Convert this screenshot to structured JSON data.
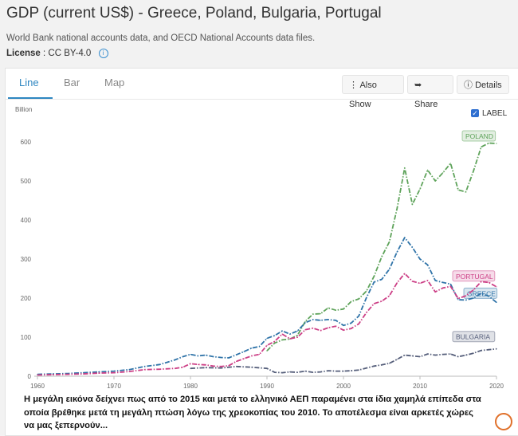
{
  "page": {
    "title": "GDP (current US$) - Greece, Poland, Bulgaria, Portugal",
    "subtitle": "World Bank national accounts data, and OECD National Accounts data files.",
    "license_label": "License",
    "license_value": "CC BY-4.0"
  },
  "tabs": [
    {
      "label": "Line"
    },
    {
      "label": "Bar"
    },
    {
      "label": "Map"
    }
  ],
  "buttons": {
    "also_show": "Also Show",
    "share": "Share",
    "details": "Details"
  },
  "label_toggle": "LABEL",
  "note": "Η μεγάλη εικόνα δείχνει πως από το 2015 και μετά το ελληνικό ΑΕΠ παραμένει στα ίδια χαμηλά επίπεδα στα οποία βρέθηκε μετά τη μεγάλη πτώση λόγω της χρεοκοπίας του 2010. Το αποτέλεσμα είναι αρκετές χώρες να μας ξεπερνούν...",
  "colors": {
    "poland": "#5ea35a",
    "greece": "#2f73a8",
    "portugal": "#cc3f86",
    "bulgaria": "#555e7a",
    "accent": "#2e86c1"
  },
  "chart_data": {
    "type": "line",
    "unit": "Billion",
    "xlim": [
      1960,
      2020
    ],
    "ylim": [
      0,
      600
    ],
    "x_ticks": [
      1960,
      1970,
      1980,
      1990,
      2000,
      2010,
      2020
    ],
    "y_ticks": [
      0,
      100,
      200,
      300,
      400,
      500,
      600
    ],
    "series": [
      {
        "name": "POLAND",
        "color": "#5ea35a",
        "points": [
          [
            1990,
            65
          ],
          [
            1991,
            85
          ],
          [
            1992,
            93
          ],
          [
            1993,
            95
          ],
          [
            1994,
            105
          ],
          [
            1995,
            140
          ],
          [
            1996,
            159
          ],
          [
            1997,
            160
          ],
          [
            1998,
            175
          ],
          [
            1999,
            169
          ],
          [
            2000,
            172
          ],
          [
            2001,
            191
          ],
          [
            2002,
            198
          ],
          [
            2003,
            218
          ],
          [
            2004,
            256
          ],
          [
            2005,
            306
          ],
          [
            2006,
            344
          ],
          [
            2007,
            429
          ],
          [
            2008,
            533
          ],
          [
            2009,
            440
          ],
          [
            2010,
            479
          ],
          [
            2011,
            528
          ],
          [
            2012,
            500
          ],
          [
            2013,
            521
          ],
          [
            2014,
            545
          ],
          [
            2015,
            477
          ],
          [
            2016,
            472
          ],
          [
            2017,
            526
          ],
          [
            2018,
            587
          ],
          [
            2019,
            597
          ],
          [
            2020,
            596
          ]
        ]
      },
      {
        "name": "GREECE",
        "color": "#2f73a8",
        "points": [
          [
            1960,
            5
          ],
          [
            1962,
            6
          ],
          [
            1964,
            7
          ],
          [
            1966,
            9
          ],
          [
            1968,
            11
          ],
          [
            1970,
            13
          ],
          [
            1972,
            17
          ],
          [
            1974,
            25
          ],
          [
            1976,
            30
          ],
          [
            1978,
            42
          ],
          [
            1979,
            50
          ],
          [
            1980,
            56
          ],
          [
            1981,
            52
          ],
          [
            1982,
            54
          ],
          [
            1983,
            50
          ],
          [
            1984,
            48
          ],
          [
            1985,
            47
          ],
          [
            1986,
            55
          ],
          [
            1987,
            63
          ],
          [
            1988,
            72
          ],
          [
            1989,
            76
          ],
          [
            1990,
            97
          ],
          [
            1991,
            104
          ],
          [
            1992,
            116
          ],
          [
            1993,
            108
          ],
          [
            1994,
            116
          ],
          [
            1995,
            137
          ],
          [
            1996,
            145
          ],
          [
            1997,
            143
          ],
          [
            1998,
            145
          ],
          [
            1999,
            143
          ],
          [
            2000,
            130
          ],
          [
            2001,
            136
          ],
          [
            2002,
            154
          ],
          [
            2003,
            201
          ],
          [
            2004,
            241
          ],
          [
            2005,
            248
          ],
          [
            2006,
            274
          ],
          [
            2007,
            318
          ],
          [
            2008,
            355
          ],
          [
            2009,
            330
          ],
          [
            2010,
            300
          ],
          [
            2011,
            285
          ],
          [
            2012,
            245
          ],
          [
            2013,
            240
          ],
          [
            2014,
            236
          ],
          [
            2015,
            196
          ],
          [
            2016,
            195
          ],
          [
            2017,
            200
          ],
          [
            2018,
            212
          ],
          [
            2019,
            205
          ],
          [
            2020,
            189
          ]
        ]
      },
      {
        "name": "PORTUGAL",
        "color": "#cc3f86",
        "points": [
          [
            1960,
            3
          ],
          [
            1962,
            4
          ],
          [
            1964,
            5
          ],
          [
            1966,
            6
          ],
          [
            1968,
            8
          ],
          [
            1970,
            9
          ],
          [
            1972,
            12
          ],
          [
            1974,
            17
          ],
          [
            1976,
            18
          ],
          [
            1978,
            20
          ],
          [
            1979,
            23
          ],
          [
            1980,
            32
          ],
          [
            1981,
            30
          ],
          [
            1982,
            29
          ],
          [
            1983,
            26
          ],
          [
            1984,
            25
          ],
          [
            1985,
            27
          ],
          [
            1986,
            38
          ],
          [
            1987,
            45
          ],
          [
            1988,
            52
          ],
          [
            1989,
            56
          ],
          [
            1990,
            79
          ],
          [
            1991,
            89
          ],
          [
            1992,
            108
          ],
          [
            1993,
            96
          ],
          [
            1994,
            100
          ],
          [
            1995,
            119
          ],
          [
            1996,
            123
          ],
          [
            1997,
            117
          ],
          [
            1998,
            124
          ],
          [
            1999,
            128
          ],
          [
            2000,
            118
          ],
          [
            2001,
            122
          ],
          [
            2002,
            134
          ],
          [
            2003,
            163
          ],
          [
            2004,
            186
          ],
          [
            2005,
            192
          ],
          [
            2006,
            206
          ],
          [
            2007,
            239
          ],
          [
            2008,
            263
          ],
          [
            2009,
            243
          ],
          [
            2010,
            238
          ],
          [
            2011,
            245
          ],
          [
            2012,
            216
          ],
          [
            2013,
            226
          ],
          [
            2014,
            230
          ],
          [
            2015,
            199
          ],
          [
            2016,
            206
          ],
          [
            2017,
            221
          ],
          [
            2018,
            242
          ],
          [
            2019,
            240
          ],
          [
            2020,
            229
          ]
        ]
      },
      {
        "name": "BULGARIA",
        "color": "#555e7a",
        "points": [
          [
            1980,
            20
          ],
          [
            1982,
            22
          ],
          [
            1984,
            21
          ],
          [
            1986,
            25
          ],
          [
            1988,
            23
          ],
          [
            1990,
            20
          ],
          [
            1991,
            10
          ],
          [
            1992,
            9
          ],
          [
            1993,
            11
          ],
          [
            1994,
            10
          ],
          [
            1995,
            13
          ],
          [
            1996,
            10
          ],
          [
            1997,
            11
          ],
          [
            1998,
            14
          ],
          [
            1999,
            13
          ],
          [
            2000,
            13
          ],
          [
            2001,
            14
          ],
          [
            2002,
            16
          ],
          [
            2003,
            21
          ],
          [
            2004,
            26
          ],
          [
            2005,
            29
          ],
          [
            2006,
            33
          ],
          [
            2007,
            43
          ],
          [
            2008,
            54
          ],
          [
            2009,
            52
          ],
          [
            2010,
            50
          ],
          [
            2011,
            57
          ],
          [
            2012,
            54
          ],
          [
            2013,
            56
          ],
          [
            2014,
            57
          ],
          [
            2015,
            50
          ],
          [
            2016,
            54
          ],
          [
            2017,
            59
          ],
          [
            2018,
            66
          ],
          [
            2019,
            68
          ],
          [
            2020,
            70
          ]
        ]
      }
    ]
  }
}
